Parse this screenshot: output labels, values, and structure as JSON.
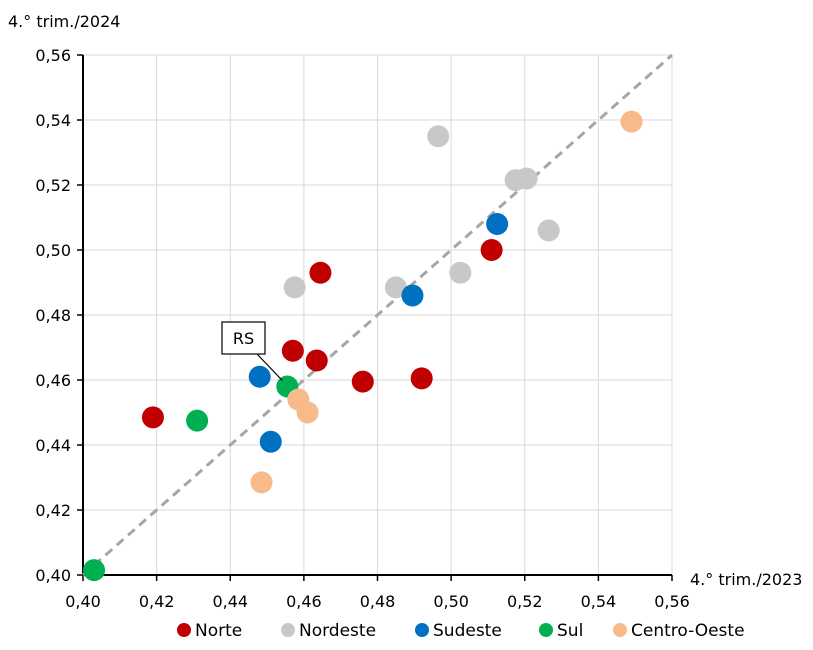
{
  "chart_data": {
    "type": "scatter",
    "xlabel": "4.° trim./2023",
    "ylabel": "4.° trim./2024",
    "xlim": [
      0.4,
      0.56
    ],
    "ylim": [
      0.4,
      0.56
    ],
    "xticks": [
      "0,40",
      "0,42",
      "0,44",
      "0,46",
      "0,48",
      "0,50",
      "0,52",
      "0,54",
      "0,56"
    ],
    "yticks": [
      "0,40",
      "0,42",
      "0,44",
      "0,46",
      "0,48",
      "0,50",
      "0,52",
      "0,54",
      "0,56"
    ],
    "grid": true,
    "legend_position": "bottom",
    "reference_line": "y = x (dashed)",
    "annotation": {
      "text": "RS",
      "x": 0.4555,
      "y": 0.458
    },
    "series": [
      {
        "name": "Norte",
        "color": "#c00000",
        "points": [
          [
            0.419,
            0.4485
          ],
          [
            0.457,
            0.469
          ],
          [
            0.4645,
            0.493
          ],
          [
            0.4635,
            0.466
          ],
          [
            0.476,
            0.4595
          ],
          [
            0.492,
            0.4605
          ],
          [
            0.511,
            0.5
          ]
        ]
      },
      {
        "name": "Nordeste",
        "color": "#c8c8c8",
        "points": [
          [
            0.4575,
            0.4885
          ],
          [
            0.485,
            0.4885
          ],
          [
            0.4965,
            0.535
          ],
          [
            0.5025,
            0.493
          ],
          [
            0.5175,
            0.5215
          ],
          [
            0.5205,
            0.522
          ],
          [
            0.5265,
            0.506
          ]
        ]
      },
      {
        "name": "Sudeste",
        "color": "#0070c0",
        "points": [
          [
            0.448,
            0.461
          ],
          [
            0.451,
            0.441
          ],
          [
            0.4895,
            0.486
          ],
          [
            0.5125,
            0.508
          ]
        ]
      },
      {
        "name": "Sul",
        "color": "#00b050",
        "points": [
          [
            0.403,
            0.4015
          ],
          [
            0.431,
            0.4475
          ],
          [
            0.4555,
            0.458
          ]
        ]
      },
      {
        "name": "Centro-Oeste",
        "color": "#f8b98b",
        "points": [
          [
            0.4485,
            0.4285
          ],
          [
            0.4585,
            0.454
          ],
          [
            0.461,
            0.45
          ],
          [
            0.549,
            0.5395
          ]
        ]
      }
    ]
  }
}
